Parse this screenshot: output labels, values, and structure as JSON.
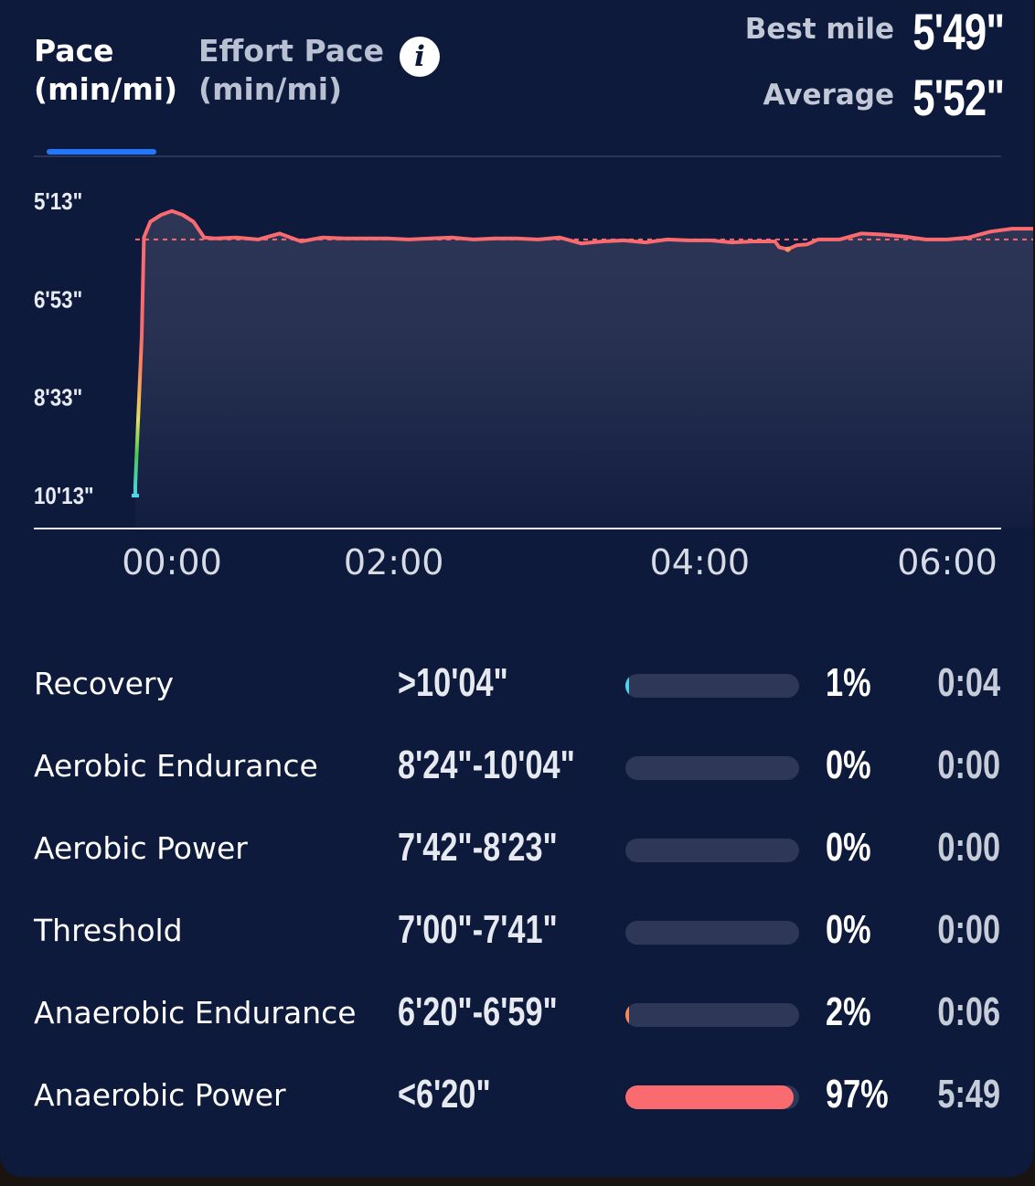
{
  "tabs": [
    {
      "line1": "Pace",
      "line2": "(min/mi)",
      "active": true
    },
    {
      "line1": "Effort Pace",
      "line2": "(min/mi)",
      "active": false
    }
  ],
  "info_icon": {
    "icon": "info-icon",
    "glyph": "i"
  },
  "stats": {
    "best_label": "Best mile",
    "best_value": "5'49\"",
    "avg_label": "Average",
    "avg_value": "5'52\""
  },
  "chart_data": {
    "type": "area",
    "title": "",
    "xlabel": "",
    "ylabel": "",
    "y_tick_labels": [
      "5'13\"",
      "6'53\"",
      "8'33\"",
      "10'13\""
    ],
    "y_tick_values_sec": [
      313,
      413,
      513,
      613
    ],
    "y_inverted": true,
    "x_tick_labels": [
      "00:00",
      "02:00",
      "04:00",
      "06:00"
    ],
    "x_tick_values_sec": [
      0,
      120,
      240,
      360
    ],
    "average_pace_sec": 352,
    "average_line": "dashed",
    "line_color": "#f96b6e",
    "series": [
      {
        "x_sec": [
          -17,
          -17,
          -14,
          -13,
          -10,
          -5,
          0,
          5,
          10,
          15,
          20,
          30,
          40,
          50,
          60,
          70,
          80,
          90,
          100,
          110,
          120,
          130,
          140,
          150,
          160,
          170,
          180,
          190,
          200,
          210,
          220,
          230,
          240,
          250,
          260,
          270,
          280,
          282,
          286,
          290,
          295,
          300,
          310,
          320,
          330,
          340,
          350,
          360,
          370,
          380,
          390,
          400,
          410,
          415
        ],
        "pace_sec": [
          613,
          603,
          450,
          350,
          334,
          327,
          323,
          327,
          334,
          350,
          351,
          350,
          352,
          346,
          354,
          350,
          351,
          351,
          351,
          352,
          351,
          350,
          352,
          351,
          351,
          352,
          350,
          356,
          354,
          353,
          355,
          352,
          353,
          353,
          355,
          354,
          354,
          360,
          362,
          358,
          357,
          352,
          352,
          346,
          347,
          349,
          352,
          352,
          350,
          344,
          341,
          341,
          338,
          330
        ]
      }
    ]
  },
  "zones": [
    {
      "name": "Recovery",
      "range": ">10'04\"",
      "percent": "1%",
      "time": "0:04",
      "fill_fraction": 0.01,
      "color": "#4fd4ea"
    },
    {
      "name": "Aerobic Endurance",
      "range": "8'24\"-10'04\"",
      "percent": "0%",
      "time": "0:00",
      "fill_fraction": 0,
      "color": "#6fd26c"
    },
    {
      "name": "Aerobic Power",
      "range": "7'42\"-8'23\"",
      "percent": "0%",
      "time": "0:00",
      "fill_fraction": 0,
      "color": "#e3e15a"
    },
    {
      "name": "Threshold",
      "range": "7'00\"-7'41\"",
      "percent": "0%",
      "time": "0:00",
      "fill_fraction": 0,
      "color": "#f6b45a"
    },
    {
      "name": "Anaerobic Endurance",
      "range": "6'20\"-6'59\"",
      "percent": "2%",
      "time": "0:06",
      "fill_fraction": 0.02,
      "color": "#f9875c"
    },
    {
      "name": "Anaerobic Power",
      "range": "<6'20\"",
      "percent": "97%",
      "time": "5:49",
      "fill_fraction": 0.97,
      "color": "#f96b6e"
    }
  ]
}
